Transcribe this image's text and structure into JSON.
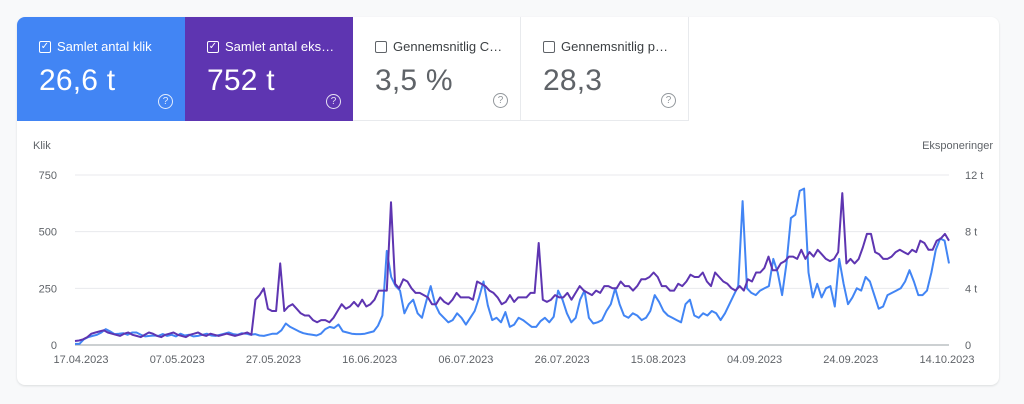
{
  "tiles": [
    {
      "label": "Samlet antal klik",
      "value": "26,6 t",
      "checked": true
    },
    {
      "label": "Samlet antal eksp…",
      "value": "752 t",
      "checked": true
    },
    {
      "label": "Gennemsnitlig CTR",
      "value": "3,5 %",
      "checked": false
    },
    {
      "label": "Gennemsnitlig po…",
      "value": "28,3",
      "checked": false
    }
  ],
  "icons": {
    "checkbox_checked": "check-icon",
    "help": "help-circle-icon"
  },
  "colors": {
    "clicks": "#4285f4",
    "impressions": "#5e35b1"
  },
  "chart_data": {
    "type": "line",
    "xlabel": "",
    "ylabel_left": "Klik",
    "ylabel_right": "Eksponeringer",
    "ylim_left": [
      0,
      750
    ],
    "ylim_right": [
      0,
      12000
    ],
    "yticks_left": [
      "0",
      "250",
      "500",
      "750"
    ],
    "yticks_right": [
      "0",
      "4 t",
      "8 t",
      "12 t"
    ],
    "x_ticks": [
      "17.04.2023",
      "07.05.2023",
      "27.05.2023",
      "16.06.2023",
      "06.07.2023",
      "26.07.2023",
      "15.08.2023",
      "04.09.2023",
      "24.09.2023",
      "14.10.2023"
    ],
    "grid": true,
    "legend": "none",
    "series": [
      {
        "name": "Samlet antal klik",
        "axis": "left",
        "color": "#4285f4",
        "values": [
          5,
          5,
          25,
          35,
          40,
          45,
          55,
          70,
          60,
          48,
          50,
          52,
          45,
          55,
          55,
          45,
          38,
          40,
          42,
          40,
          48,
          40,
          45,
          38,
          50,
          42,
          45,
          38,
          40,
          45,
          50,
          42,
          40,
          45,
          50,
          55,
          48,
          45,
          52,
          50,
          45,
          48,
          42,
          40,
          45,
          50,
          50,
          65,
          95,
          80,
          70,
          60,
          52,
          48,
          45,
          42,
          50,
          70,
          80,
          75,
          90,
          60,
          55,
          50,
          48,
          48,
          50,
          55,
          60,
          85,
          130,
          415,
          300,
          260,
          240,
          140,
          180,
          200,
          140,
          120,
          195,
          260,
          180,
          140,
          120,
          100,
          110,
          140,
          120,
          90,
          120,
          150,
          210,
          280,
          175,
          110,
          120,
          100,
          145,
          80,
          90,
          120,
          110,
          95,
          80,
          80,
          105,
          120,
          100,
          125,
          240,
          200,
          140,
          100,
          120,
          200,
          240,
          120,
          95,
          100,
          110,
          150,
          180,
          250,
          180,
          130,
          120,
          140,
          130,
          110,
          120,
          150,
          220,
          190,
          150,
          130,
          120,
          110,
          100,
          180,
          200,
          130,
          120,
          140,
          130,
          150,
          140,
          110,
          140,
          180,
          220,
          260,
          635,
          250,
          230,
          220,
          240,
          250,
          260,
          380,
          320,
          220,
          360,
          560,
          575,
          680,
          690,
          320,
          210,
          270,
          210,
          250,
          260,
          170,
          380,
          270,
          180,
          210,
          250,
          240,
          300,
          280,
          220,
          160,
          170,
          220,
          230,
          240,
          250,
          280,
          330,
          280,
          220,
          220,
          240,
          320,
          420,
          470,
          460,
          360
        ]
      },
      {
        "name": "Samlet antal eksponeringer",
        "axis": "right",
        "color": "#5e35b1",
        "values": [
          280,
          320,
          400,
          560,
          800,
          880,
          960,
          1040,
          880,
          800,
          720,
          640,
          800,
          880,
          720,
          640,
          560,
          720,
          880,
          800,
          640,
          560,
          720,
          800,
          880,
          720,
          640,
          560,
          720,
          800,
          880,
          720,
          640,
          800,
          720,
          640,
          720,
          800,
          720,
          640,
          720,
          800,
          880,
          720,
          3200,
          3520,
          4000,
          2560,
          2400,
          2400,
          5760,
          2400,
          2720,
          2880,
          2560,
          2240,
          2080,
          2080,
          1760,
          1600,
          1760,
          1760,
          1600,
          1920,
          2400,
          2880,
          2560,
          2720,
          3040,
          2720,
          3200,
          2720,
          2880,
          3200,
          3840,
          3840,
          3840,
          10080,
          4320,
          4000,
          4640,
          4480,
          4000,
          3680,
          3680,
          3520,
          3360,
          2880,
          2880,
          3360,
          3040,
          2880,
          3200,
          3680,
          3360,
          3360,
          3360,
          3200,
          4480,
          4320,
          4160,
          3840,
          3680,
          3360,
          2880,
          3040,
          3520,
          3040,
          3360,
          3360,
          3360,
          3680,
          3680,
          7200,
          3200,
          3040,
          3200,
          3520,
          3360,
          3360,
          3680,
          3200,
          3680,
          4160,
          3840,
          3680,
          3520,
          3840,
          3680,
          4160,
          4160,
          4000,
          4000,
          4480,
          4160,
          4160,
          3840,
          4160,
          4640,
          4640,
          4800,
          5120,
          4800,
          4160,
          4160,
          3840,
          3840,
          4320,
          4160,
          4480,
          4960,
          4800,
          4800,
          5120,
          4480,
          4160,
          5120,
          4800,
          4480,
          4320,
          4000,
          3840,
          4160,
          3840,
          4640,
          4480,
          5120,
          5120,
          5440,
          6240,
          5280,
          5280,
          5760,
          5920,
          6240,
          6240,
          6080,
          6720,
          6080,
          6560,
          6240,
          6720,
          6400,
          6080,
          5920,
          6080,
          6560,
          10720,
          5760,
          6080,
          5760,
          6080,
          6880,
          7840,
          7840,
          6560,
          6400,
          6080,
          6080,
          6240,
          6560,
          6720,
          6560,
          6400,
          6720,
          6560,
          7360,
          7200,
          6720,
          6720,
          7360,
          7520,
          7840,
          7360
        ]
      }
    ]
  }
}
